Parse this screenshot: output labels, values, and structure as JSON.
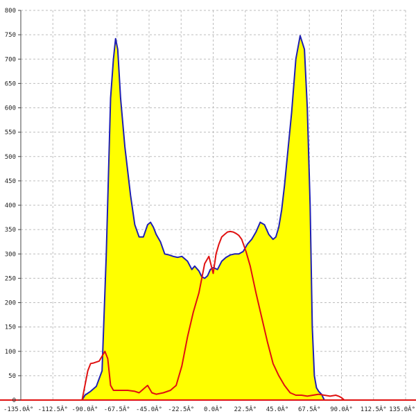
{
  "chart_data": {
    "type": "area",
    "xlim": [
      -135,
      135
    ],
    "ylim": [
      0,
      800
    ],
    "grid": true,
    "x_tick_labels": [
      "-135.0Â°",
      "-112.5Â°",
      "-90.0Â°",
      "-67.5Â°",
      "-45.0Â°",
      "-22.5Â°",
      "0.0Â°",
      "22.5Â°",
      "45.0Â°",
      "67.5Â°",
      "90.0Â°",
      "112.5Â°",
      "135.0Â°"
    ],
    "x_tick_values": [
      -135,
      -112.5,
      -90,
      -67.5,
      -45,
      -22.5,
      0,
      22.5,
      45,
      67.5,
      90,
      112.5,
      135
    ],
    "y_tick_labels": [
      "0",
      "50",
      "100",
      "150",
      "200",
      "250",
      "300",
      "350",
      "400",
      "450",
      "500",
      "550",
      "600",
      "650",
      "700",
      "750",
      "800"
    ],
    "y_tick_values": [
      0,
      50,
      100,
      150,
      200,
      250,
      300,
      350,
      400,
      450,
      500,
      550,
      600,
      650,
      700,
      750,
      800
    ],
    "colors": {
      "fill": "#ffff00",
      "series1": "#1e1eb4",
      "series2": "#e01010",
      "baseline": "#e01010"
    },
    "series": [
      {
        "color": "#1e1eb4",
        "filled": true,
        "x": [
          -92,
          -90,
          -86,
          -82,
          -78,
          -75,
          -72,
          -70,
          -68.5,
          -67,
          -65,
          -62,
          -58,
          -55,
          -52,
          -49,
          -46,
          -44,
          -42,
          -40,
          -37,
          -34,
          -31,
          -28,
          -25,
          -22,
          -18,
          -15,
          -13,
          -10,
          -8,
          -6,
          -4,
          -2,
          0,
          3,
          6,
          9,
          12,
          15,
          18,
          21,
          24,
          27,
          30,
          33,
          36,
          39,
          42,
          44,
          46,
          48,
          50,
          52,
          55,
          58,
          61,
          64,
          66,
          68,
          69.5,
          71,
          72.5,
          74,
          76,
          78,
          80,
          82,
          85,
          88,
          90,
          92
        ],
        "y": [
          0,
          10,
          18,
          28,
          60,
          300,
          620,
          700,
          742,
          720,
          620,
          520,
          420,
          360,
          335,
          335,
          360,
          365,
          355,
          340,
          325,
          300,
          298,
          295,
          293,
          295,
          285,
          268,
          275,
          265,
          253,
          250,
          255,
          268,
          272,
          268,
          285,
          293,
          298,
          300,
          300,
          305,
          320,
          330,
          345,
          365,
          360,
          340,
          330,
          335,
          355,
          390,
          440,
          500,
          590,
          700,
          748,
          720,
          600,
          400,
          150,
          50,
          25,
          18,
          12,
          0,
          0,
          0,
          0,
          0,
          0,
          0
        ]
      },
      {
        "color": "#e01010",
        "filled": false,
        "x": [
          -92,
          -90,
          -88,
          -86,
          -84,
          -82,
          -80,
          -78,
          -76,
          -74,
          -72,
          -70,
          -65,
          -60,
          -55,
          -52,
          -50,
          -48,
          -46,
          -43,
          -40,
          -35,
          -30,
          -26,
          -22,
          -18,
          -14,
          -10,
          -6,
          -3,
          0,
          2,
          4,
          6,
          8,
          10,
          12,
          14,
          16,
          18,
          20,
          23,
          26,
          30,
          34,
          38,
          42,
          46,
          50,
          54,
          58,
          62,
          66,
          70,
          74,
          78,
          82,
          86,
          88,
          90,
          92
        ],
        "y": [
          0,
          30,
          60,
          75,
          76,
          78,
          80,
          90,
          100,
          85,
          30,
          20,
          20,
          20,
          18,
          15,
          20,
          25,
          30,
          15,
          12,
          15,
          20,
          30,
          70,
          130,
          180,
          220,
          280,
          295,
          260,
          300,
          320,
          335,
          340,
          345,
          346,
          345,
          342,
          338,
          330,
          305,
          275,
          220,
          170,
          120,
          75,
          50,
          30,
          15,
          10,
          10,
          8,
          10,
          12,
          10,
          8,
          10,
          8,
          5,
          0
        ]
      }
    ]
  }
}
